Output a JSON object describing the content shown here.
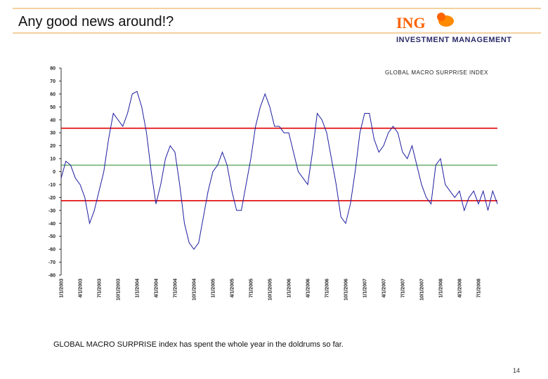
{
  "header": {
    "title": "Any good news around!?",
    "logo": {
      "brand": "ING",
      "subtitle": "INVESTMENT MANAGEMENT"
    }
  },
  "chart_data": {
    "type": "line",
    "categories": [
      "1/1/2003",
      null,
      null,
      null,
      "4/1/2003",
      null,
      null,
      null,
      "7/1/2003",
      null,
      null,
      null,
      "10/1/2003",
      null,
      null,
      null,
      "1/1/2004",
      null,
      null,
      null,
      "4/1/2004",
      null,
      null,
      null,
      "7/1/2004",
      null,
      null,
      null,
      "10/1/2004",
      null,
      null,
      null,
      "1/1/2005",
      null,
      null,
      null,
      "4/1/2005",
      null,
      null,
      null,
      "7/1/2005",
      null,
      null,
      null,
      "10/1/2005",
      null,
      null,
      null,
      "1/1/2006",
      null,
      null,
      null,
      "4/1/2006",
      null,
      null,
      null,
      "7/1/2006",
      null,
      null,
      null,
      "10/1/2006",
      null,
      null,
      null,
      "1/1/2007",
      null,
      null,
      null,
      "4/1/2007",
      null,
      null,
      null,
      "7/1/2007",
      null,
      null,
      null,
      "10/1/2007",
      null,
      null,
      null,
      "1/1/2008",
      null,
      null,
      null,
      "4/1/2008",
      null,
      null,
      null,
      "7/1/2008",
      null,
      null,
      null,
      null
    ],
    "series": [
      {
        "name": "GLOBAL MACRO SURPRISE INDEX",
        "color": "#1c1ca0",
        "values": [
          -5,
          8,
          5,
          -5,
          -10,
          -20,
          -40,
          -30,
          -15,
          0,
          25,
          45,
          40,
          35,
          45,
          60,
          62,
          50,
          30,
          0,
          -25,
          -10,
          10,
          20,
          15,
          -10,
          -40,
          -55,
          -60,
          -55,
          -35,
          -15,
          0,
          5,
          15,
          5,
          -15,
          -30,
          -30,
          -10,
          10,
          35,
          50,
          60,
          50,
          35,
          35,
          30,
          30,
          15,
          0,
          -5,
          -10,
          15,
          45,
          40,
          30,
          10,
          -10,
          -35,
          -40,
          -25,
          0,
          30,
          45,
          45,
          25,
          15,
          20,
          30,
          35,
          30,
          15,
          10,
          20,
          5,
          -10,
          -20,
          -25,
          5,
          10,
          -10,
          -15,
          -20,
          -15,
          -30,
          -20,
          -15,
          -25,
          -15,
          -30,
          -15,
          -25
        ]
      }
    ],
    "reference_lines": [
      {
        "value": 33.5,
        "color": "#e00000"
      },
      {
        "value": 5,
        "color": "#2a8a2a"
      },
      {
        "value": -22.5,
        "color": "#e00000"
      }
    ],
    "ylim": [
      -80,
      80
    ],
    "yticks": [
      -80,
      -70,
      -60,
      -50,
      -40,
      -30,
      -20,
      -10,
      0,
      10,
      20,
      30,
      40,
      50,
      60,
      70,
      80
    ]
  },
  "caption": "GLOBAL MACRO SURPRISE index has spent the whole year in the doldrums so far.",
  "page_number": "14"
}
